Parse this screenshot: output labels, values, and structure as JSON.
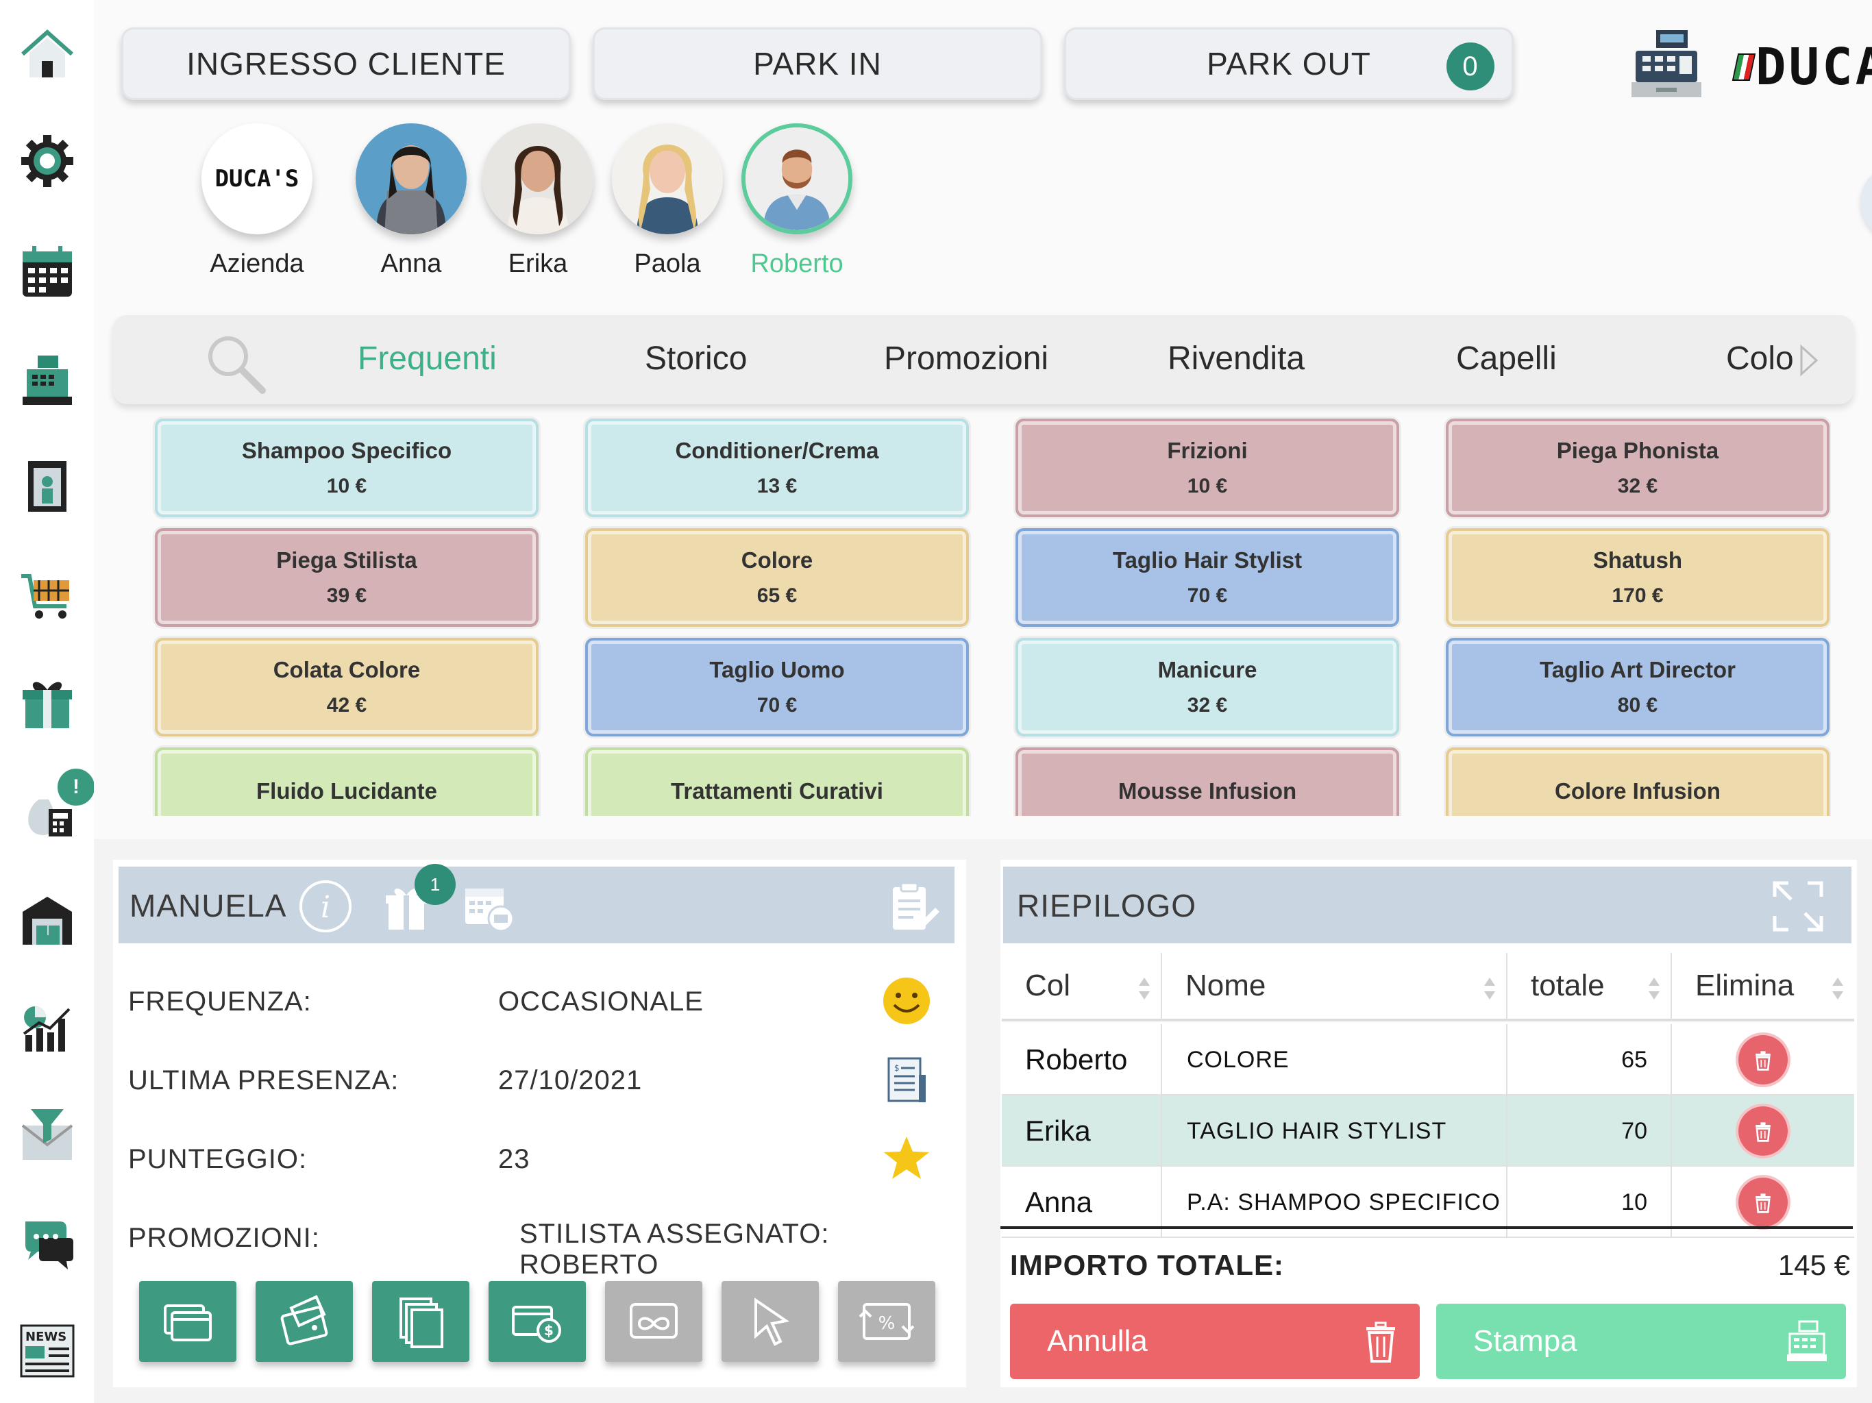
{
  "sidebar": {
    "items": [
      {
        "icon": "home-icon"
      },
      {
        "icon": "settings-gear-icon"
      },
      {
        "icon": "calendar-icon"
      },
      {
        "icon": "cash-register-icon"
      },
      {
        "icon": "booth-icon"
      },
      {
        "icon": "shopping-cart-icon"
      },
      {
        "icon": "gift-icon"
      },
      {
        "icon": "money-bag-calculator-icon",
        "badge": "!"
      },
      {
        "icon": "warehouse-icon"
      },
      {
        "icon": "stats-chart-icon"
      },
      {
        "icon": "mail-filter-icon"
      },
      {
        "icon": "chat-icon"
      },
      {
        "icon": "news-icon"
      }
    ]
  },
  "header": {
    "ingresso_label": "INGRESSO CLIENTE",
    "park_in_label": "PARK IN",
    "park_out_label": "PARK OUT",
    "park_out_count": "0",
    "brand": "DUCA'S"
  },
  "staff": [
    {
      "name": "Azienda",
      "type": "logo",
      "logo_text": "DUCA'S"
    },
    {
      "name": "Anna",
      "type": "photo"
    },
    {
      "name": "Erika",
      "type": "photo"
    },
    {
      "name": "Paola",
      "type": "photo"
    },
    {
      "name": "Roberto",
      "type": "photo",
      "selected": true
    }
  ],
  "tabs": [
    "Frequenti",
    "Storico",
    "Promozioni",
    "Rivendita",
    "Capelli",
    "Colo"
  ],
  "active_tab": "Frequenti",
  "products": [
    {
      "name": "Shampoo Specifico",
      "price": "10 €",
      "color": "cyan"
    },
    {
      "name": "Conditioner/Crema",
      "price": "13 €",
      "color": "cyan"
    },
    {
      "name": "Frizioni",
      "price": "10 €",
      "color": "rose"
    },
    {
      "name": "Piega Phonista",
      "price": "32 €",
      "color": "rose"
    },
    {
      "name": "Piega Stilista",
      "price": "39 €",
      "color": "rose"
    },
    {
      "name": "Colore",
      "price": "65 €",
      "color": "sand"
    },
    {
      "name": "Taglio Hair Stylist",
      "price": "70 €",
      "color": "blue"
    },
    {
      "name": "Shatush",
      "price": "170 €",
      "color": "sand"
    },
    {
      "name": "Colata Colore",
      "price": "42 €",
      "color": "sand"
    },
    {
      "name": "Taglio Uomo",
      "price": "70 €",
      "color": "blue"
    },
    {
      "name": "Manicure",
      "price": "32 €",
      "color": "cyan"
    },
    {
      "name": "Taglio Art Director",
      "price": "80 €",
      "color": "blue"
    },
    {
      "name": "Fluido Lucidante",
      "price": "",
      "color": "green"
    },
    {
      "name": "Trattamenti Curativi",
      "price": "",
      "color": "green"
    },
    {
      "name": "Mousse Infusion",
      "price": "",
      "color": "rose"
    },
    {
      "name": "Colore Infusion",
      "price": "",
      "color": "sand"
    }
  ],
  "customer": {
    "name": "MANUELA",
    "gift_badge": "1",
    "frequenza_label": "FREQUENZA:",
    "frequenza_value": "OCCASIONALE",
    "ultima_label": "ULTIMA PRESENZA:",
    "ultima_value": "27/10/2021",
    "punteggio_label": "PUNTEGGIO:",
    "punteggio_value": "23",
    "promozioni_label": "PROMOZIONI:",
    "stilista_label": "STILISTA ASSEGNATO: ROBERTO",
    "promo_buttons": [
      {
        "icon": "card-icon",
        "enabled": true
      },
      {
        "icon": "wallet-icon",
        "enabled": true
      },
      {
        "icon": "copy-pages-icon",
        "enabled": true
      },
      {
        "icon": "payment-coins-icon",
        "enabled": true
      },
      {
        "icon": "infinity-card-icon",
        "enabled": false
      },
      {
        "icon": "cursor-click-icon",
        "enabled": false
      },
      {
        "icon": "percent-exchange-icon",
        "enabled": false
      }
    ]
  },
  "summary": {
    "title": "RIEPILOGO",
    "columns": [
      "Col",
      "Nome",
      "totale",
      "Elimina"
    ],
    "rows": [
      {
        "col": "Roberto",
        "nome": "COLORE",
        "totale": "65"
      },
      {
        "col": "Erika",
        "nome": "TAGLIO HAIR STYLIST",
        "totale": "70"
      },
      {
        "col": "Anna",
        "nome": "P.A: SHAMPOO SPECIFICO",
        "totale": "10"
      }
    ],
    "total_label": "IMPORTO TOTALE:",
    "total_value": "145 €",
    "cancel_label": "Annulla",
    "print_label": "Stampa"
  },
  "colors": {
    "accent_green": "#3fae8a",
    "badge_green": "#2e8e78",
    "delete_red": "#e8646c",
    "cancel_red": "#ec6669",
    "print_green": "#78e0ae"
  }
}
